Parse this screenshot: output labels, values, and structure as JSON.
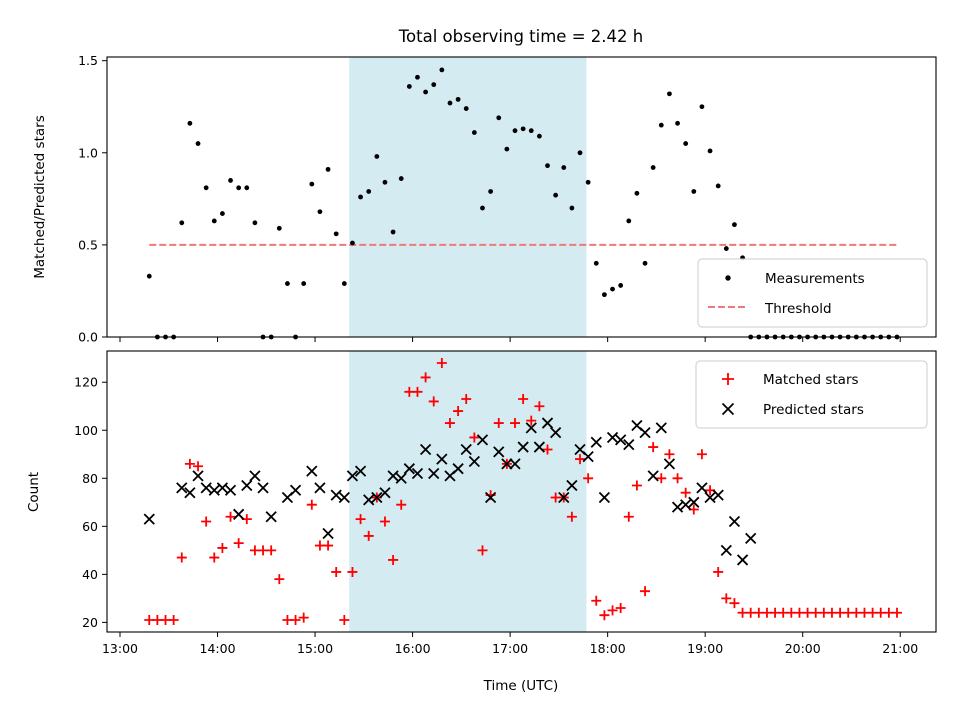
{
  "figure": {
    "title": "Total observing time = 2.42 h"
  },
  "chart_data": [
    {
      "type": "scatter",
      "panel": "top",
      "ylabel": "Matched/Predicted stars",
      "xlabel": "",
      "xlim": [
        "12:52",
        "21:22"
      ],
      "ylim": [
        0,
        1.52
      ],
      "yticks": [
        "0.0",
        "0.5",
        "1.0",
        "1.5"
      ],
      "shaded_region": [
        "15:21",
        "17:47"
      ],
      "shade_color": "#d4ebf2",
      "legend": {
        "location": "lower right"
      },
      "series": [
        {
          "name": "Measurements",
          "marker": "dot",
          "color": "#000000",
          "x": [
            "13:18",
            "13:23",
            "13:28",
            "13:33",
            "13:38",
            "13:43",
            "13:48",
            "13:53",
            "13:58",
            "14:03",
            "14:08",
            "14:13",
            "14:18",
            "14:23",
            "14:28",
            "14:33",
            "14:38",
            "14:43",
            "14:48",
            "14:53",
            "14:58",
            "15:03",
            "15:08",
            "15:13",
            "15:18",
            "15:23",
            "15:28",
            "15:33",
            "15:38",
            "15:43",
            "15:48",
            "15:53",
            "15:58",
            "16:03",
            "16:08",
            "16:13",
            "16:18",
            "16:23",
            "16:28",
            "16:33",
            "16:38",
            "16:43",
            "16:48",
            "16:53",
            "16:58",
            "17:03",
            "17:08",
            "17:13",
            "17:18",
            "17:23",
            "17:28",
            "17:33",
            "17:38",
            "17:43",
            "17:48",
            "17:53",
            "17:58",
            "18:03",
            "18:08",
            "18:13",
            "18:18",
            "18:23",
            "18:28",
            "18:33",
            "18:38",
            "18:43",
            "18:48",
            "18:53",
            "18:58",
            "19:03",
            "19:08",
            "19:13",
            "19:18",
            "19:23",
            "19:28",
            "19:33",
            "19:38",
            "19:43",
            "19:48",
            "19:53",
            "19:58",
            "20:03",
            "20:08",
            "20:13",
            "20:18",
            "20:23",
            "20:28",
            "20:33",
            "20:38",
            "20:43",
            "20:48",
            "20:53",
            "20:58"
          ],
          "y": [
            0.33,
            0.0,
            0.0,
            0.0,
            0.62,
            1.16,
            1.05,
            0.81,
            0.63,
            0.67,
            0.85,
            0.81,
            0.81,
            0.62,
            0.0,
            0.0,
            0.59,
            0.29,
            0.0,
            0.29,
            0.83,
            0.68,
            0.91,
            0.56,
            0.29,
            0.51,
            0.76,
            0.79,
            0.98,
            0.84,
            0.57,
            0.86,
            1.36,
            1.41,
            1.33,
            1.37,
            1.45,
            1.27,
            1.29,
            1.24,
            1.11,
            0.7,
            0.79,
            1.19,
            1.02,
            1.12,
            1.13,
            1.12,
            1.09,
            0.93,
            0.77,
            0.92,
            0.7,
            1.0,
            0.84,
            0.4,
            0.23,
            0.26,
            0.28,
            0.63,
            0.78,
            0.4,
            0.92,
            1.15,
            1.32,
            1.16,
            1.05,
            0.79,
            1.25,
            1.01,
            0.82,
            0.48,
            0.61,
            0.43,
            0.0,
            0.0,
            0.0,
            0.0,
            0.0,
            0.0,
            0.0,
            0.0,
            0.0,
            0.0,
            0.0,
            0.0,
            0.0,
            0.0,
            0.0,
            0.0,
            0.0,
            0.0,
            0.0
          ]
        },
        {
          "name": "Threshold",
          "line": "dashed",
          "color": "#f07878",
          "x": [
            "13:18",
            "20:58"
          ],
          "y": [
            0.5,
            0.5
          ]
        }
      ]
    },
    {
      "type": "scatter",
      "panel": "bottom",
      "ylabel": "Count",
      "xlabel": "Time (UTC)",
      "xlim": [
        "12:52",
        "21:22"
      ],
      "ylim": [
        16,
        133
      ],
      "yticks": [
        "20",
        "40",
        "60",
        "80",
        "100",
        "120"
      ],
      "xticks": [
        "13:00",
        "14:00",
        "15:00",
        "16:00",
        "17:00",
        "18:00",
        "19:00",
        "20:00",
        "21:00"
      ],
      "shaded_region": [
        "15:21",
        "17:47"
      ],
      "shade_color": "#d4ebf2",
      "legend": {
        "location": "upper right"
      },
      "series": [
        {
          "name": "Matched stars",
          "marker": "plus",
          "color": "#ff0000",
          "x": [
            "13:18",
            "13:23",
            "13:28",
            "13:33",
            "13:38",
            "13:43",
            "13:48",
            "13:53",
            "13:58",
            "14:03",
            "14:08",
            "14:13",
            "14:18",
            "14:23",
            "14:28",
            "14:33",
            "14:38",
            "14:43",
            "14:48",
            "14:53",
            "14:58",
            "15:03",
            "15:08",
            "15:13",
            "15:18",
            "15:23",
            "15:28",
            "15:33",
            "15:38",
            "15:43",
            "15:48",
            "15:53",
            "15:58",
            "16:03",
            "16:08",
            "16:13",
            "16:18",
            "16:23",
            "16:28",
            "16:33",
            "16:38",
            "16:43",
            "16:48",
            "16:53",
            "16:58",
            "17:03",
            "17:08",
            "17:13",
            "17:18",
            "17:23",
            "17:28",
            "17:33",
            "17:38",
            "17:43",
            "17:48",
            "17:53",
            "17:58",
            "18:03",
            "18:08",
            "18:13",
            "18:18",
            "18:23",
            "18:28",
            "18:33",
            "18:38",
            "18:43",
            "18:48",
            "18:53",
            "18:58",
            "19:03",
            "19:08",
            "19:13",
            "19:18",
            "19:23",
            "19:28",
            "19:33",
            "19:38",
            "19:43",
            "19:48",
            "19:53",
            "19:58",
            "20:03",
            "20:08",
            "20:13",
            "20:18",
            "20:23",
            "20:28",
            "20:33",
            "20:38",
            "20:43",
            "20:48",
            "20:53",
            "20:58"
          ],
          "y": [
            21,
            21,
            21,
            21,
            47,
            86,
            85,
            62,
            47,
            51,
            64,
            53,
            63,
            50,
            50,
            50,
            38,
            21,
            21,
            22,
            69,
            52,
            52,
            41,
            21,
            41,
            63,
            56,
            72,
            62,
            46,
            69,
            116,
            116,
            122,
            112,
            128,
            103,
            108,
            113,
            97,
            50,
            73,
            103,
            86,
            103,
            113,
            104,
            110,
            92,
            72,
            72,
            64,
            88,
            80,
            29,
            23,
            25,
            26,
            64,
            77,
            33,
            93,
            80,
            90,
            80,
            74,
            67,
            90,
            75,
            41,
            30,
            28,
            24,
            24,
            24,
            24,
            24,
            24,
            24,
            24,
            24,
            24,
            24,
            24,
            24,
            24,
            24,
            24,
            24,
            24,
            24,
            24
          ]
        },
        {
          "name": "Predicted stars",
          "marker": "x",
          "color": "#000000",
          "x": [
            "13:18",
            "13:38",
            "13:43",
            "13:48",
            "13:53",
            "13:58",
            "14:03",
            "14:08",
            "14:13",
            "14:18",
            "14:23",
            "14:28",
            "14:33",
            "14:43",
            "14:48",
            "14:58",
            "15:03",
            "15:08",
            "15:13",
            "15:18",
            "15:23",
            "15:28",
            "15:33",
            "15:38",
            "15:43",
            "15:48",
            "15:53",
            "15:58",
            "16:03",
            "16:08",
            "16:13",
            "16:18",
            "16:23",
            "16:28",
            "16:33",
            "16:38",
            "16:43",
            "16:48",
            "16:53",
            "16:58",
            "17:03",
            "17:08",
            "17:13",
            "17:18",
            "17:23",
            "17:28",
            "17:33",
            "17:38",
            "17:43",
            "17:48",
            "17:53",
            "17:58",
            "18:03",
            "18:08",
            "18:13",
            "18:18",
            "18:23",
            "18:28",
            "18:33",
            "18:38",
            "18:43",
            "18:48",
            "18:53",
            "18:58",
            "19:03",
            "19:08",
            "19:13",
            "19:18",
            "19:23",
            "19:28"
          ],
          "y": [
            63,
            76,
            74,
            81,
            76,
            75,
            76,
            75,
            65,
            77,
            81,
            76,
            64,
            72,
            75,
            83,
            76,
            57,
            73,
            72,
            81,
            83,
            71,
            72,
            74,
            81,
            80,
            84,
            82,
            92,
            82,
            88,
            81,
            84,
            92,
            87,
            96,
            72,
            91,
            86,
            86,
            93,
            101,
            93,
            103,
            99,
            72,
            77,
            92,
            89,
            95,
            72,
            97,
            96,
            94,
            102,
            99,
            81,
            101,
            86,
            68,
            69,
            70,
            76,
            72,
            73,
            50,
            62,
            46,
            55
          ]
        }
      ]
    }
  ]
}
